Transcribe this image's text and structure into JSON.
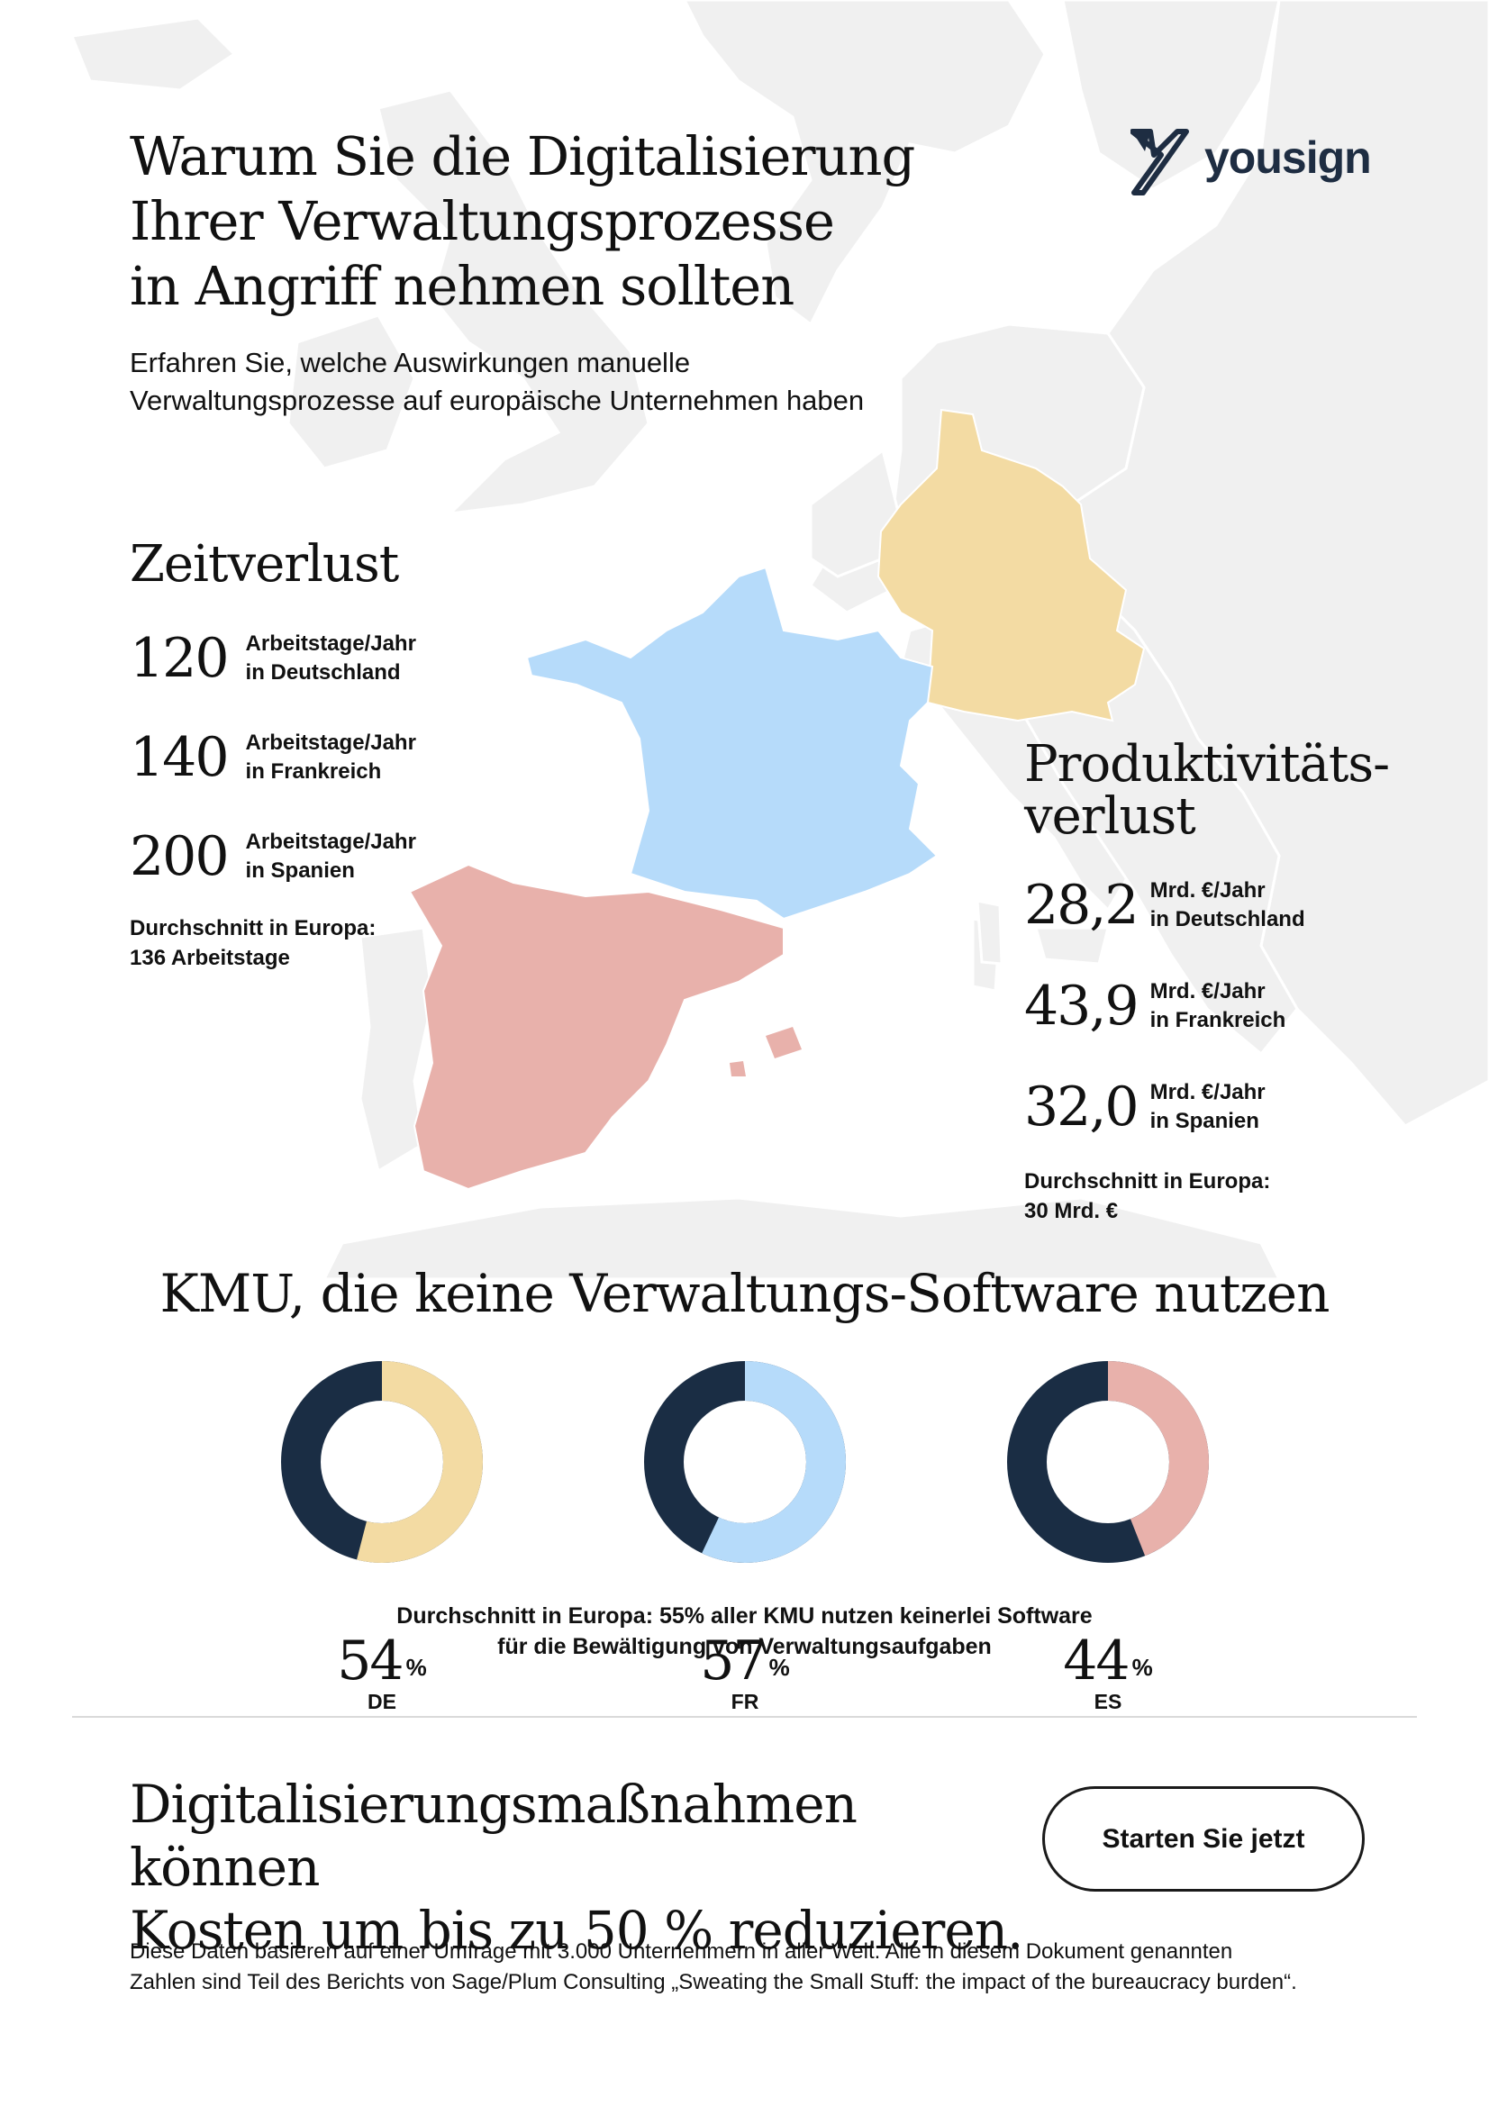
{
  "brand": {
    "name": "yousign",
    "color": "#1e2d42"
  },
  "header": {
    "title_lines": [
      "Warum Sie die Digitalisierung",
      "Ihrer Verwaltungsprozesse",
      "in Angriff nehmen sollten"
    ],
    "subtitle_lines": [
      "Erfahren Sie, welche Auswirkungen manuelle",
      "Verwaltungsprozesse auf europäische Unternehmen haben"
    ]
  },
  "colors": {
    "germany": "#f3dba3",
    "france": "#b6dbfa",
    "spain": "#e8b1ab",
    "dark": "#1a2d44",
    "map_gray": "#eeeeee"
  },
  "zeitverlust": {
    "title": "Zeitverlust",
    "stats": [
      {
        "value": "120",
        "unit": "Arbeitstage/Jahr",
        "country": "in Deutschland"
      },
      {
        "value": "140",
        "unit": "Arbeitstage/Jahr",
        "country": "in Frankreich"
      },
      {
        "value": "200",
        "unit": "Arbeitstage/Jahr",
        "country": "in Spanien"
      }
    ],
    "average_lines": [
      "Durchschnitt in Europa:",
      "136 Arbeitstage"
    ]
  },
  "produktivitaet": {
    "title_lines": [
      "Produktivitäts-",
      "verlust"
    ],
    "stats": [
      {
        "value": "28,2",
        "unit": "Mrd. €/Jahr",
        "country": "in Deutschland"
      },
      {
        "value": "43,9",
        "unit": "Mrd. €/Jahr",
        "country": "in Frankreich"
      },
      {
        "value": "32,0",
        "unit": "Mrd. €/Jahr",
        "country": "in Spanien"
      }
    ],
    "average_lines": [
      "Durchschnitt in Europa:",
      "30 Mrd. €"
    ]
  },
  "kmu": {
    "title": "KMU, die keine Verwaltungs-Software nutzen",
    "donuts": [
      {
        "value": 54,
        "value_label": "54",
        "pct": "%",
        "code": "DE",
        "color": "#f3dba3"
      },
      {
        "value": 57,
        "value_label": "57",
        "pct": "%",
        "code": "FR",
        "color": "#b6dbfa"
      },
      {
        "value": 44,
        "value_label": "44",
        "pct": "%",
        "code": "ES",
        "color": "#e8b1ab"
      }
    ],
    "note_lines": [
      "Durchschnitt in Europa: 55% aller KMU nutzen keinerlei Software",
      "für die Bewältigung von Verwaltungsaufgaben"
    ]
  },
  "cta": {
    "text_lines": [
      "Digitalisierungsmaßnahmen können",
      "Kosten um bis zu 50 % reduzieren."
    ],
    "button_label": "Starten Sie jetzt"
  },
  "footer": {
    "lines": [
      "Diese Daten basieren auf einer Umfrage mit 3.000 Unternehmern in aller Welt. Alle in diesem Dokument genannten",
      "Zahlen sind Teil des Berichts von Sage/Plum Consulting „Sweating the Small Stuff: the impact of the bureaucracy burden“."
    ]
  }
}
